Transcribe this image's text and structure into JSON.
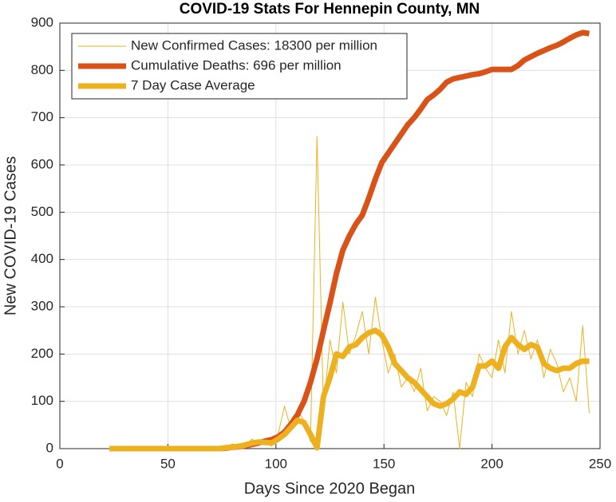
{
  "chart_data": {
    "type": "line",
    "title": "COVID-19 Stats For Hennepin County, MN",
    "x_label": "Days Since 2020 Began",
    "y_label": "New COVID-19 Cases",
    "x": [
      23,
      26,
      29,
      32,
      35,
      38,
      41,
      44,
      47,
      50,
      53,
      56,
      59,
      62,
      65,
      68,
      71,
      74,
      77,
      80,
      83,
      86,
      89,
      92,
      95,
      98,
      101,
      104,
      107,
      110,
      113,
      116,
      119,
      122,
      125,
      128,
      131,
      134,
      137,
      140,
      143,
      146,
      149,
      152,
      155,
      158,
      161,
      164,
      167,
      170,
      173,
      176,
      179,
      182,
      185,
      188,
      191,
      194,
      197,
      200,
      203,
      206,
      209,
      212,
      215,
      218,
      221,
      224,
      227,
      230,
      233,
      236,
      239,
      242,
      245
    ],
    "series": [
      {
        "name": "New Confirmed Cases: 18300 per million",
        "color": "#EDB120",
        "values": [
          0,
          0,
          0,
          0,
          0,
          0,
          0,
          0,
          0,
          0,
          0,
          0,
          0,
          0,
          0,
          0,
          0,
          0,
          5,
          10,
          3,
          8,
          20,
          10,
          15,
          5,
          30,
          90,
          40,
          80,
          60,
          15,
          660,
          80,
          230,
          160,
          310,
          200,
          240,
          290,
          200,
          320,
          230,
          160,
          200,
          130,
          150,
          120,
          170,
          80,
          110,
          100,
          70,
          120,
          0,
          140,
          110,
          200,
          170,
          150,
          230,
          160,
          290,
          200,
          250,
          190,
          230,
          150,
          210,
          180,
          120,
          150,
          100,
          260,
          75
        ]
      },
      {
        "name": "Cumulative Deaths: 696 per million",
        "color": "#D95319",
        "values": [
          0,
          0,
          0,
          0,
          0,
          0,
          0,
          0,
          0,
          0,
          0,
          0,
          0,
          0,
          0,
          0,
          0,
          0,
          1,
          3,
          4,
          6,
          9,
          12,
          16,
          19,
          25,
          35,
          52,
          72,
          100,
          140,
          190,
          250,
          308,
          370,
          420,
          450,
          475,
          494,
          530,
          570,
          605,
          625,
          645,
          665,
          685,
          700,
          718,
          738,
          748,
          760,
          775,
          782,
          785,
          788,
          791,
          793,
          797,
          802,
          802,
          802,
          802,
          810,
          822,
          829,
          836,
          842,
          848,
          853,
          860,
          868,
          875,
          880,
          878
        ]
      },
      {
        "name": "7 Day Case Average",
        "color": "#EDB120",
        "values": [
          0,
          0,
          0,
          0,
          0,
          0,
          0,
          0,
          0,
          0,
          0,
          0,
          0,
          0,
          0,
          0,
          0,
          0,
          2,
          3,
          5,
          8,
          12,
          14,
          13,
          12,
          20,
          30,
          45,
          60,
          55,
          30,
          2,
          110,
          150,
          200,
          195,
          215,
          220,
          235,
          245,
          250,
          240,
          215,
          180,
          165,
          150,
          140,
          125,
          110,
          95,
          90,
          95,
          105,
          120,
          115,
          130,
          175,
          175,
          185,
          170,
          215,
          235,
          220,
          210,
          220,
          215,
          180,
          170,
          165,
          170,
          170,
          180,
          185,
          185
        ]
      }
    ],
    "xlim": [
      0,
      250
    ],
    "xticks": [
      0,
      50,
      100,
      150,
      200,
      250
    ],
    "ylim": [
      0,
      900
    ],
    "yticks": [
      0,
      100,
      200,
      300,
      400,
      500,
      600,
      700,
      800,
      900
    ],
    "grid": true,
    "legend": "upper left"
  }
}
